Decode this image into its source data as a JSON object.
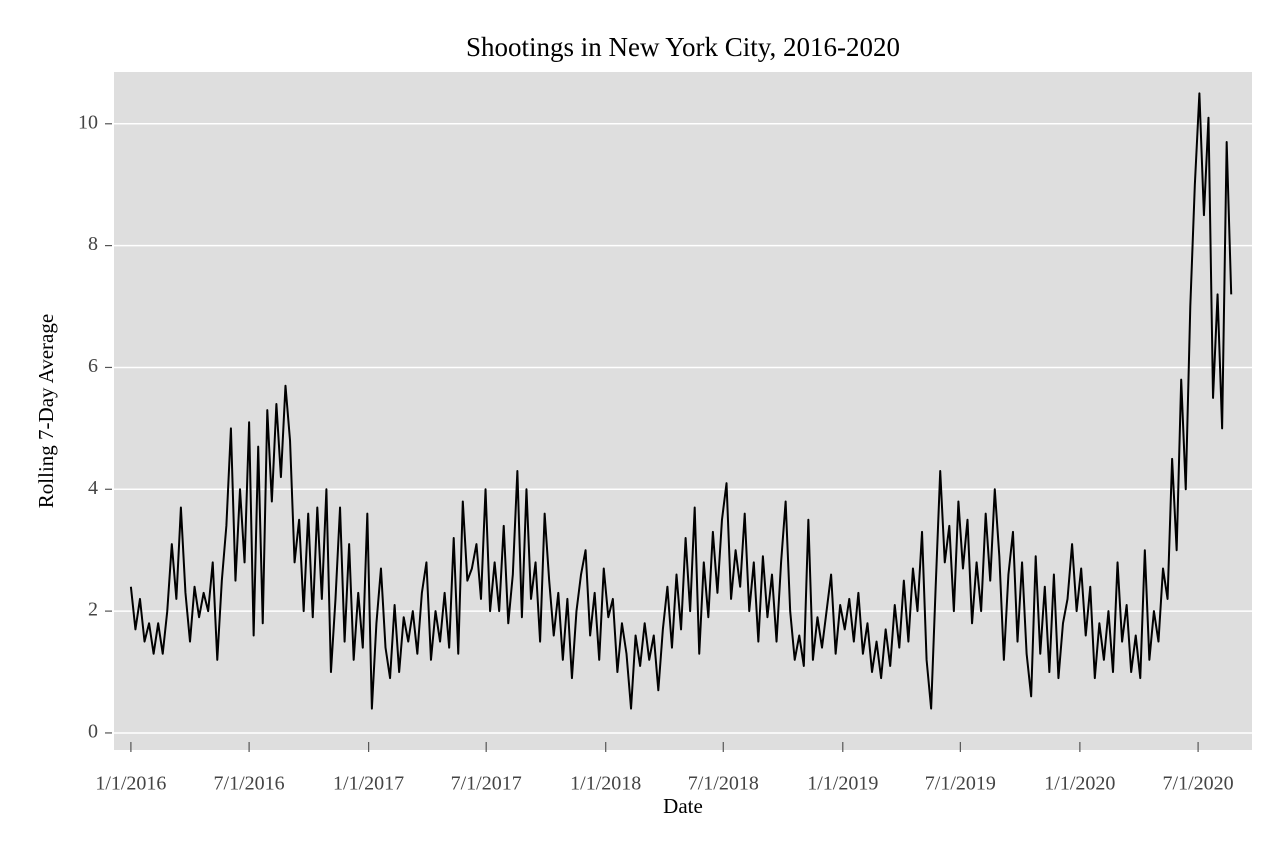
{
  "chart_data": {
    "type": "line",
    "title": "Shootings in New York City, 2016-2020",
    "xlabel": "Date",
    "ylabel": "Rolling 7-Day Average",
    "color": "#000000",
    "grid": true,
    "xlim": [
      "2015-12-06",
      "2020-09-22"
    ],
    "ylim": [
      -0.28,
      10.85
    ],
    "yticks": [
      0,
      2,
      4,
      6,
      8,
      10
    ],
    "xticks": [
      {
        "value": "2016-01-01",
        "label": "1/1/2016"
      },
      {
        "value": "2016-07-01",
        "label": "7/1/2016"
      },
      {
        "value": "2017-01-01",
        "label": "1/1/2017"
      },
      {
        "value": "2017-07-01",
        "label": "7/1/2017"
      },
      {
        "value": "2018-01-01",
        "label": "1/1/2018"
      },
      {
        "value": "2018-07-01",
        "label": "7/1/2018"
      },
      {
        "value": "2019-01-01",
        "label": "1/1/2019"
      },
      {
        "value": "2019-07-01",
        "label": "7/1/2019"
      },
      {
        "value": "2020-01-01",
        "label": "1/1/2020"
      },
      {
        "value": "2020-07-01",
        "label": "7/1/2020"
      }
    ],
    "x": [
      "2016-01-01",
      "2016-01-08",
      "2016-01-15",
      "2016-01-22",
      "2016-01-29",
      "2016-02-05",
      "2016-02-12",
      "2016-02-19",
      "2016-02-26",
      "2016-03-04",
      "2016-03-11",
      "2016-03-18",
      "2016-03-25",
      "2016-04-01",
      "2016-04-08",
      "2016-04-15",
      "2016-04-22",
      "2016-04-29",
      "2016-05-06",
      "2016-05-13",
      "2016-05-20",
      "2016-05-27",
      "2016-06-03",
      "2016-06-10",
      "2016-06-17",
      "2016-06-24",
      "2016-07-01",
      "2016-07-08",
      "2016-07-15",
      "2016-07-22",
      "2016-07-29",
      "2016-08-05",
      "2016-08-12",
      "2016-08-19",
      "2016-08-26",
      "2016-09-02",
      "2016-09-09",
      "2016-09-16",
      "2016-09-23",
      "2016-09-30",
      "2016-10-07",
      "2016-10-14",
      "2016-10-21",
      "2016-10-28",
      "2016-11-04",
      "2016-11-11",
      "2016-11-18",
      "2016-11-25",
      "2016-12-02",
      "2016-12-09",
      "2016-12-16",
      "2016-12-23",
      "2016-12-30",
      "2017-01-06",
      "2017-01-13",
      "2017-01-20",
      "2017-01-27",
      "2017-02-03",
      "2017-02-10",
      "2017-02-17",
      "2017-02-24",
      "2017-03-03",
      "2017-03-10",
      "2017-03-17",
      "2017-03-24",
      "2017-03-31",
      "2017-04-07",
      "2017-04-14",
      "2017-04-21",
      "2017-04-28",
      "2017-05-05",
      "2017-05-12",
      "2017-05-19",
      "2017-05-26",
      "2017-06-02",
      "2017-06-09",
      "2017-06-16",
      "2017-06-23",
      "2017-06-30",
      "2017-07-07",
      "2017-07-14",
      "2017-07-21",
      "2017-07-28",
      "2017-08-04",
      "2017-08-11",
      "2017-08-18",
      "2017-08-25",
      "2017-09-01",
      "2017-09-08",
      "2017-09-15",
      "2017-09-22",
      "2017-09-29",
      "2017-10-06",
      "2017-10-13",
      "2017-10-20",
      "2017-10-27",
      "2017-11-03",
      "2017-11-10",
      "2017-11-17",
      "2017-11-24",
      "2017-12-01",
      "2017-12-08",
      "2017-12-15",
      "2017-12-22",
      "2017-12-29",
      "2018-01-05",
      "2018-01-12",
      "2018-01-19",
      "2018-01-26",
      "2018-02-02",
      "2018-02-09",
      "2018-02-16",
      "2018-02-23",
      "2018-03-02",
      "2018-03-09",
      "2018-03-16",
      "2018-03-23",
      "2018-03-30",
      "2018-04-06",
      "2018-04-13",
      "2018-04-20",
      "2018-04-27",
      "2018-05-04",
      "2018-05-11",
      "2018-05-18",
      "2018-05-25",
      "2018-06-01",
      "2018-06-08",
      "2018-06-15",
      "2018-06-22",
      "2018-06-29",
      "2018-07-06",
      "2018-07-13",
      "2018-07-20",
      "2018-07-27",
      "2018-08-03",
      "2018-08-10",
      "2018-08-17",
      "2018-08-24",
      "2018-08-31",
      "2018-09-07",
      "2018-09-14",
      "2018-09-21",
      "2018-09-28",
      "2018-10-05",
      "2018-10-12",
      "2018-10-19",
      "2018-10-26",
      "2018-11-02",
      "2018-11-09",
      "2018-11-16",
      "2018-11-23",
      "2018-11-30",
      "2018-12-07",
      "2018-12-14",
      "2018-12-21",
      "2018-12-28",
      "2019-01-04",
      "2019-01-11",
      "2019-01-18",
      "2019-01-25",
      "2019-02-01",
      "2019-02-08",
      "2019-02-15",
      "2019-02-22",
      "2019-03-01",
      "2019-03-08",
      "2019-03-15",
      "2019-03-22",
      "2019-03-29",
      "2019-04-05",
      "2019-04-12",
      "2019-04-19",
      "2019-04-26",
      "2019-05-03",
      "2019-05-10",
      "2019-05-17",
      "2019-05-24",
      "2019-05-31",
      "2019-06-07",
      "2019-06-14",
      "2019-06-21",
      "2019-06-28",
      "2019-07-05",
      "2019-07-12",
      "2019-07-19",
      "2019-07-26",
      "2019-08-02",
      "2019-08-09",
      "2019-08-16",
      "2019-08-23",
      "2019-08-30",
      "2019-09-06",
      "2019-09-13",
      "2019-09-20",
      "2019-09-27",
      "2019-10-04",
      "2019-10-11",
      "2019-10-18",
      "2019-10-25",
      "2019-11-01",
      "2019-11-08",
      "2019-11-15",
      "2019-11-22",
      "2019-11-29",
      "2019-12-06",
      "2019-12-13",
      "2019-12-20",
      "2019-12-27",
      "2020-01-03",
      "2020-01-10",
      "2020-01-17",
      "2020-01-24",
      "2020-01-31",
      "2020-02-07",
      "2020-02-14",
      "2020-02-21",
      "2020-02-28",
      "2020-03-06",
      "2020-03-13",
      "2020-03-20",
      "2020-03-27",
      "2020-04-03",
      "2020-04-10",
      "2020-04-17",
      "2020-04-24",
      "2020-05-01",
      "2020-05-08",
      "2020-05-15",
      "2020-05-22",
      "2020-05-29",
      "2020-06-05",
      "2020-06-12",
      "2020-06-19",
      "2020-06-26",
      "2020-07-03",
      "2020-07-10",
      "2020-07-17",
      "2020-07-24",
      "2020-07-31",
      "2020-08-07",
      "2020-08-14",
      "2020-08-21"
    ],
    "values": [
      2.4,
      1.7,
      2.2,
      1.5,
      1.8,
      1.3,
      1.8,
      1.3,
      2.0,
      3.1,
      2.2,
      3.7,
      2.3,
      1.5,
      2.4,
      1.9,
      2.3,
      2.0,
      2.8,
      1.2,
      2.5,
      3.4,
      5.0,
      2.5,
      4.0,
      2.8,
      5.1,
      1.6,
      4.7,
      1.8,
      5.3,
      3.8,
      5.4,
      4.2,
      5.7,
      4.8,
      2.8,
      3.5,
      2.0,
      3.6,
      1.9,
      3.7,
      2.2,
      4.0,
      1.0,
      2.2,
      3.7,
      1.5,
      3.1,
      1.2,
      2.3,
      1.4,
      3.6,
      0.4,
      1.8,
      2.7,
      1.4,
      0.9,
      2.1,
      1.0,
      1.9,
      1.5,
      2.0,
      1.3,
      2.3,
      2.8,
      1.2,
      2.0,
      1.5,
      2.3,
      1.4,
      3.2,
      1.3,
      3.8,
      2.5,
      2.7,
      3.1,
      2.2,
      4.0,
      2.0,
      2.8,
      2.0,
      3.4,
      1.8,
      2.6,
      4.3,
      1.9,
      4.0,
      2.2,
      2.8,
      1.5,
      3.6,
      2.5,
      1.6,
      2.3,
      1.2,
      2.2,
      0.9,
      2.0,
      2.6,
      3.0,
      1.6,
      2.3,
      1.2,
      2.7,
      1.9,
      2.2,
      1.0,
      1.8,
      1.3,
      0.4,
      1.6,
      1.1,
      1.8,
      1.2,
      1.6,
      0.7,
      1.7,
      2.4,
      1.4,
      2.6,
      1.7,
      3.2,
      2.0,
      3.7,
      1.3,
      2.8,
      1.9,
      3.3,
      2.3,
      3.5,
      4.1,
      2.2,
      3.0,
      2.4,
      3.6,
      2.0,
      2.8,
      1.5,
      2.9,
      1.9,
      2.6,
      1.5,
      2.8,
      3.8,
      2.0,
      1.2,
      1.6,
      1.1,
      3.5,
      1.2,
      1.9,
      1.4,
      2.0,
      2.6,
      1.3,
      2.1,
      1.7,
      2.2,
      1.5,
      2.3,
      1.3,
      1.8,
      1.0,
      1.5,
      0.9,
      1.7,
      1.1,
      2.1,
      1.4,
      2.5,
      1.5,
      2.7,
      2.0,
      3.3,
      1.2,
      0.4,
      2.4,
      4.3,
      2.8,
      3.4,
      2.0,
      3.8,
      2.7,
      3.5,
      1.8,
      2.8,
      2.0,
      3.6,
      2.5,
      4.0,
      2.9,
      1.2,
      2.6,
      3.3,
      1.5,
      2.8,
      1.3,
      0.6,
      2.9,
      1.3,
      2.4,
      1.0,
      2.6,
      0.9,
      1.8,
      2.2,
      3.1,
      2.0,
      2.7,
      1.6,
      2.4,
      0.9,
      1.8,
      1.2,
      2.0,
      1.0,
      2.8,
      1.5,
      2.1,
      1.0,
      1.6,
      0.9,
      3.0,
      1.2,
      2.0,
      1.5,
      2.7,
      2.2,
      4.5,
      3.0,
      5.8,
      4.0,
      7.0,
      9.0,
      10.5,
      8.5,
      10.1,
      5.5,
      7.2,
      5.0,
      9.7,
      7.2
    ]
  }
}
